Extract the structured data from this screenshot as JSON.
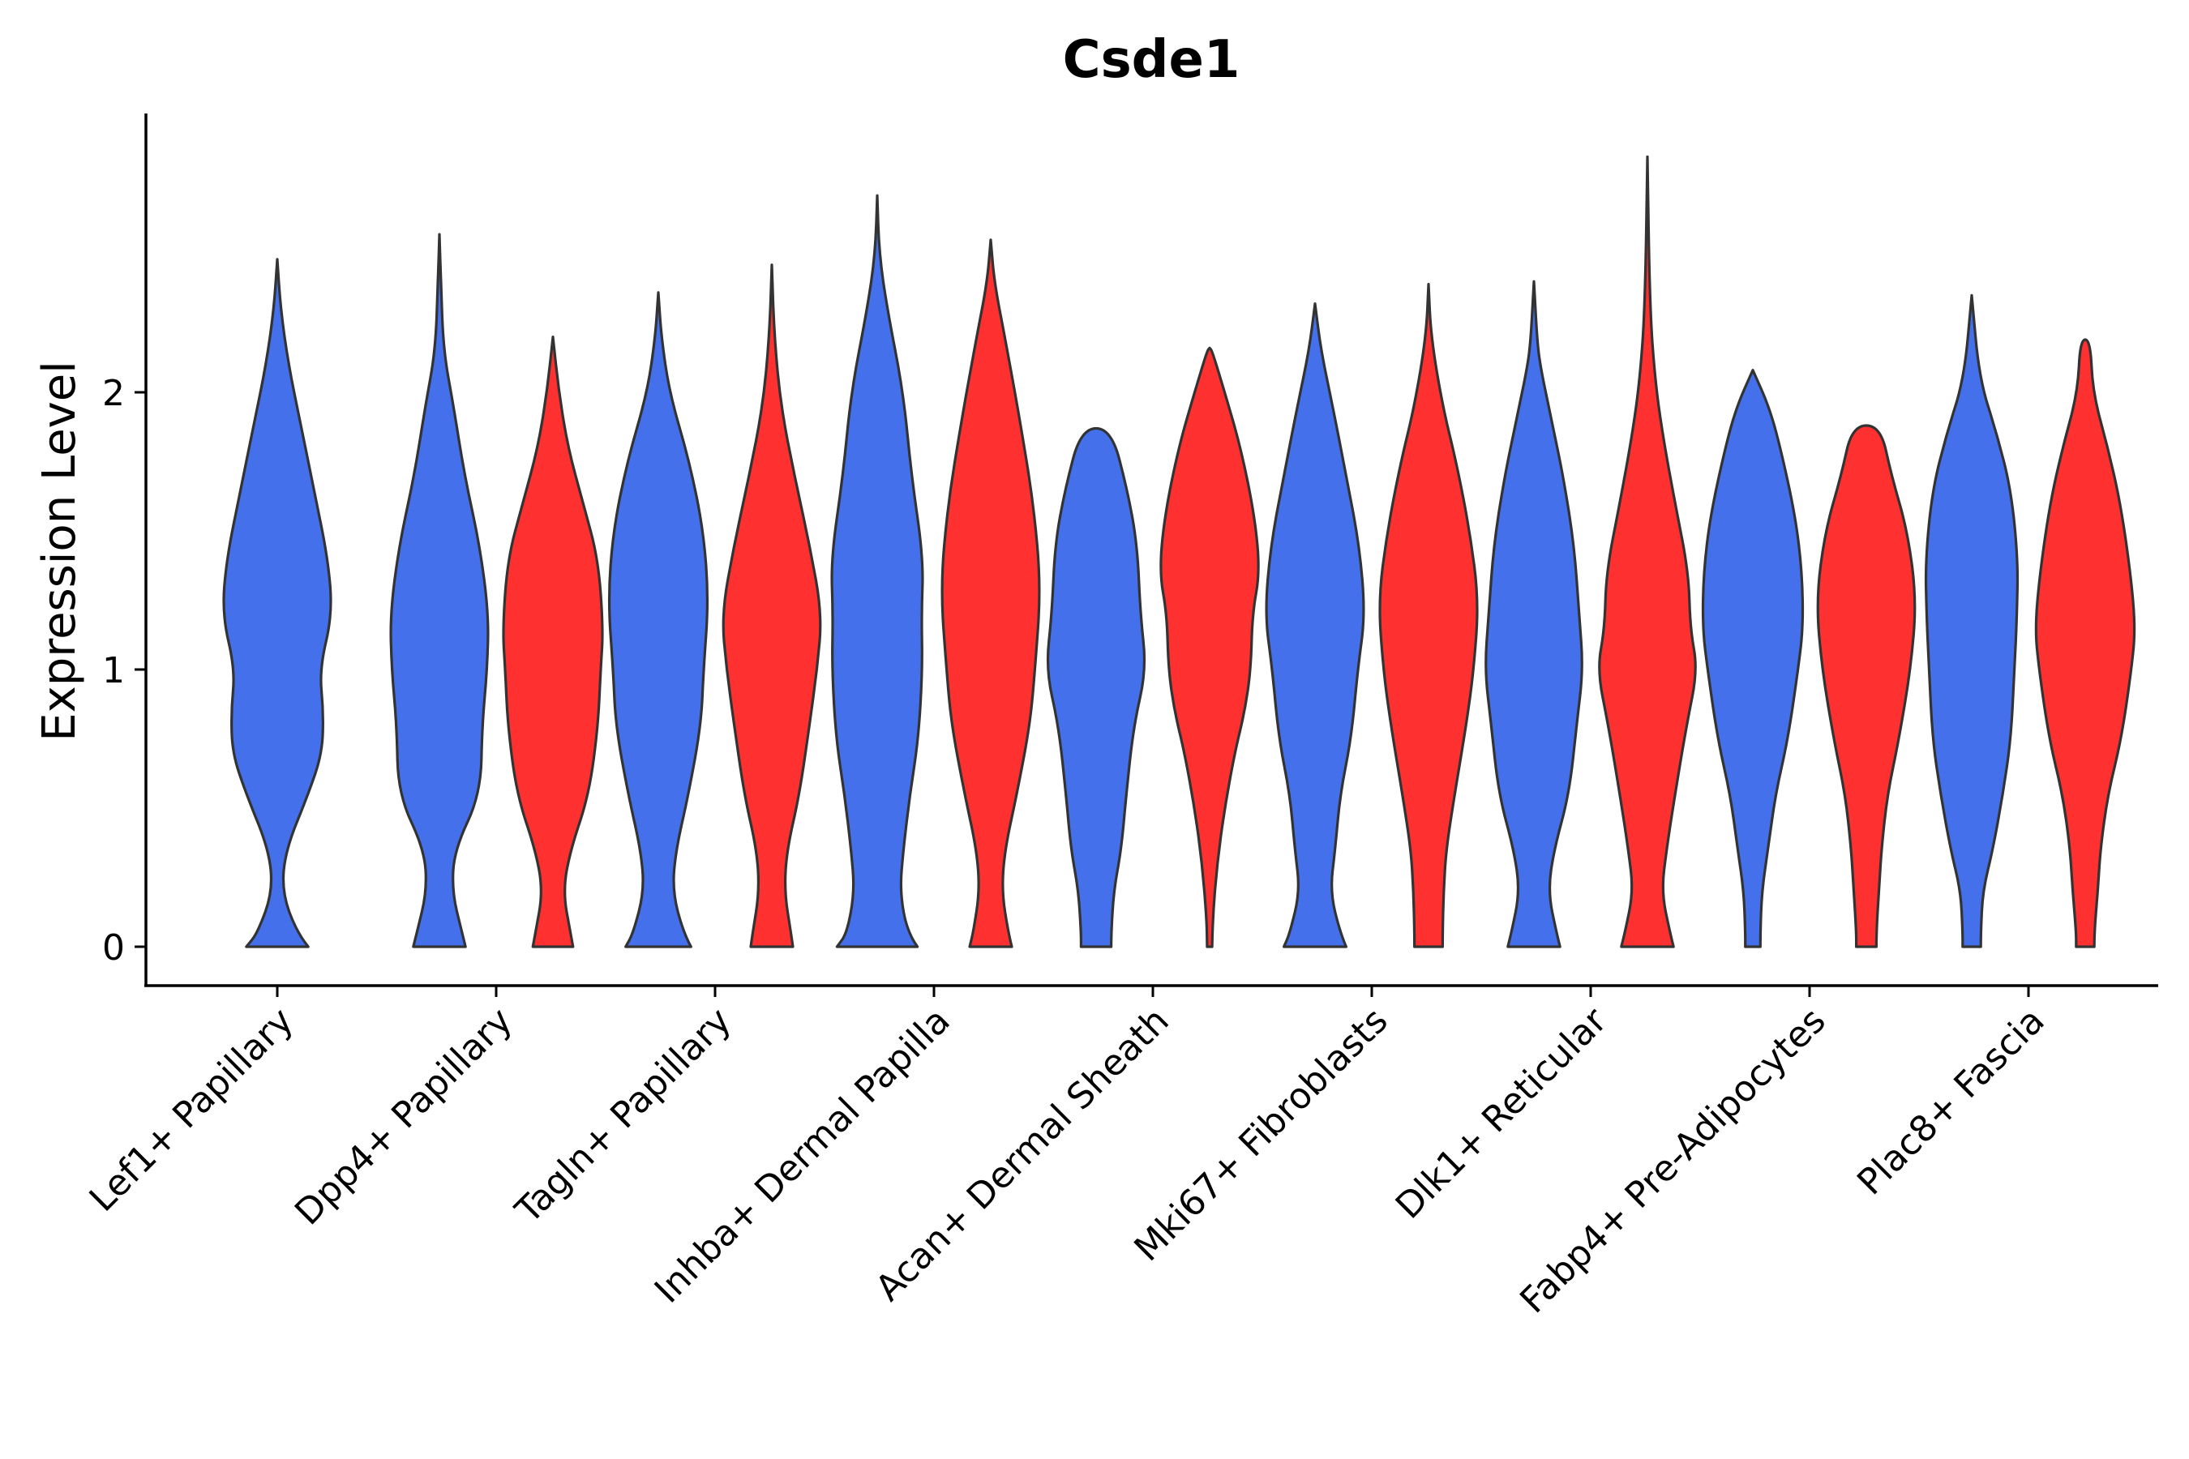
{
  "chart_data": {
    "type": "violin",
    "title": "Csde1",
    "xlabel": "",
    "ylabel": "Expression Level",
    "ylim": [
      -0.15,
      3.0
    ],
    "yticks": [
      0,
      1,
      2
    ],
    "grid": false,
    "legend": "none",
    "series_colors": {
      "blue": "#4470EB",
      "red": "#FF3030"
    },
    "categories": [
      "Lef1+ Papillary",
      "Dpp4+ Papillary",
      "Tagln+ Papillary",
      "Inhba+ Dermal Papilla",
      "Acan+ Dermal Sheath",
      "Mki67+ Fibroblasts",
      "Dlk1+ Reticular",
      "Fabp4+ Pre-Adipocytes",
      "Plac8+ Fascia"
    ],
    "violins": [
      {
        "category": 0,
        "group": "blue",
        "profile": [
          [
            0,
            0.55
          ],
          [
            0.05,
            0.35
          ],
          [
            0.2,
            0.08
          ],
          [
            0.35,
            0.15
          ],
          [
            0.55,
            0.55
          ],
          [
            0.7,
            0.8
          ],
          [
            0.85,
            0.82
          ],
          [
            1.0,
            0.75
          ],
          [
            1.2,
            0.98
          ],
          [
            1.4,
            0.9
          ],
          [
            1.65,
            0.65
          ],
          [
            1.9,
            0.4
          ],
          [
            2.1,
            0.2
          ],
          [
            2.3,
            0.06
          ],
          [
            2.48,
            0.0
          ]
        ]
      },
      {
        "category": 1,
        "group": "blue",
        "profile": [
          [
            0,
            0.52
          ],
          [
            0.05,
            0.45
          ],
          [
            0.2,
            0.25
          ],
          [
            0.35,
            0.3
          ],
          [
            0.55,
            0.82
          ],
          [
            0.8,
            0.85
          ],
          [
            1.0,
            0.95
          ],
          [
            1.2,
            0.98
          ],
          [
            1.45,
            0.8
          ],
          [
            1.7,
            0.5
          ],
          [
            1.95,
            0.28
          ],
          [
            2.15,
            0.08
          ],
          [
            2.4,
            0.03
          ],
          [
            2.57,
            0.0
          ]
        ]
      },
      {
        "category": 1,
        "group": "red",
        "profile": [
          [
            0,
            0.4
          ],
          [
            0.05,
            0.35
          ],
          [
            0.2,
            0.2
          ],
          [
            0.35,
            0.35
          ],
          [
            0.55,
            0.72
          ],
          [
            0.8,
            0.9
          ],
          [
            1.0,
            0.95
          ],
          [
            1.15,
            1.0
          ],
          [
            1.4,
            0.9
          ],
          [
            1.6,
            0.6
          ],
          [
            1.8,
            0.3
          ],
          [
            2.0,
            0.12
          ],
          [
            2.2,
            0.0
          ]
        ]
      },
      {
        "category": 2,
        "group": "blue",
        "profile": [
          [
            0,
            0.65
          ],
          [
            0.05,
            0.5
          ],
          [
            0.2,
            0.28
          ],
          [
            0.35,
            0.35
          ],
          [
            0.55,
            0.6
          ],
          [
            0.8,
            0.85
          ],
          [
            1.0,
            0.9
          ],
          [
            1.25,
            1.0
          ],
          [
            1.5,
            0.9
          ],
          [
            1.75,
            0.62
          ],
          [
            2.0,
            0.22
          ],
          [
            2.2,
            0.06
          ],
          [
            2.36,
            0.0
          ]
        ]
      },
      {
        "category": 2,
        "group": "red",
        "profile": [
          [
            0,
            0.42
          ],
          [
            0.05,
            0.38
          ],
          [
            0.2,
            0.25
          ],
          [
            0.35,
            0.3
          ],
          [
            0.55,
            0.55
          ],
          [
            0.8,
            0.75
          ],
          [
            1.0,
            0.9
          ],
          [
            1.2,
            1.0
          ],
          [
            1.45,
            0.75
          ],
          [
            1.7,
            0.45
          ],
          [
            1.95,
            0.18
          ],
          [
            2.2,
            0.05
          ],
          [
            2.46,
            0.0
          ]
        ]
      },
      {
        "category": 3,
        "group": "blue",
        "profile": [
          [
            0,
            0.8
          ],
          [
            0.05,
            0.6
          ],
          [
            0.2,
            0.45
          ],
          [
            0.35,
            0.52
          ],
          [
            0.55,
            0.65
          ],
          [
            0.75,
            0.82
          ],
          [
            1.0,
            0.9
          ],
          [
            1.2,
            0.88
          ],
          [
            1.4,
            0.92
          ],
          [
            1.7,
            0.68
          ],
          [
            2.0,
            0.52
          ],
          [
            2.3,
            0.2
          ],
          [
            2.5,
            0.04
          ],
          [
            2.71,
            0.0
          ]
        ]
      },
      {
        "category": 3,
        "group": "red",
        "profile": [
          [
            0,
            0.42
          ],
          [
            0.05,
            0.35
          ],
          [
            0.2,
            0.22
          ],
          [
            0.35,
            0.28
          ],
          [
            0.55,
            0.52
          ],
          [
            0.8,
            0.78
          ],
          [
            1.0,
            0.88
          ],
          [
            1.3,
            1.0
          ],
          [
            1.6,
            0.85
          ],
          [
            1.9,
            0.58
          ],
          [
            2.2,
            0.28
          ],
          [
            2.4,
            0.07
          ],
          [
            2.55,
            0.0
          ]
        ]
      },
      {
        "category": 4,
        "group": "blue",
        "profile": [
          [
            0,
            0.3
          ],
          [
            0.05,
            0.3
          ],
          [
            0.2,
            0.35
          ],
          [
            0.35,
            0.5
          ],
          [
            0.55,
            0.6
          ],
          [
            0.8,
            0.75
          ],
          [
            1.0,
            1.0
          ],
          [
            1.2,
            0.88
          ],
          [
            1.45,
            0.82
          ],
          [
            1.65,
            0.62
          ],
          [
            1.87,
            0.3
          ]
        ]
      },
      {
        "category": 4,
        "group": "red",
        "profile": [
          [
            0,
            0.05
          ],
          [
            0.1,
            0.06
          ],
          [
            0.3,
            0.15
          ],
          [
            0.5,
            0.3
          ],
          [
            0.7,
            0.5
          ],
          [
            0.85,
            0.7
          ],
          [
            1.0,
            0.82
          ],
          [
            1.2,
            0.85
          ],
          [
            1.35,
            1.0
          ],
          [
            1.55,
            0.9
          ],
          [
            1.8,
            0.62
          ],
          [
            2.0,
            0.3
          ],
          [
            2.15,
            0.05
          ],
          [
            2.16,
            0.0
          ]
        ]
      },
      {
        "category": 5,
        "group": "blue",
        "profile": [
          [
            0,
            0.62
          ],
          [
            0.05,
            0.5
          ],
          [
            0.2,
            0.3
          ],
          [
            0.35,
            0.4
          ],
          [
            0.55,
            0.5
          ],
          [
            0.75,
            0.72
          ],
          [
            1.0,
            0.85
          ],
          [
            1.2,
            1.0
          ],
          [
            1.45,
            0.88
          ],
          [
            1.7,
            0.62
          ],
          [
            1.95,
            0.35
          ],
          [
            2.15,
            0.12
          ],
          [
            2.32,
            0.0
          ]
        ]
      },
      {
        "category": 5,
        "group": "red",
        "profile": [
          [
            0,
            0.28
          ],
          [
            0.05,
            0.28
          ],
          [
            0.2,
            0.3
          ],
          [
            0.35,
            0.35
          ],
          [
            0.55,
            0.52
          ],
          [
            0.8,
            0.75
          ],
          [
            1.0,
            0.9
          ],
          [
            1.25,
            1.0
          ],
          [
            1.5,
            0.82
          ],
          [
            1.75,
            0.55
          ],
          [
            1.95,
            0.28
          ],
          [
            2.2,
            0.05
          ],
          [
            2.39,
            0.0
          ]
        ]
      },
      {
        "category": 6,
        "group": "blue",
        "profile": [
          [
            0,
            0.52
          ],
          [
            0.05,
            0.45
          ],
          [
            0.2,
            0.28
          ],
          [
            0.35,
            0.4
          ],
          [
            0.55,
            0.7
          ],
          [
            0.8,
            0.85
          ],
          [
            1.0,
            0.98
          ],
          [
            1.2,
            0.9
          ],
          [
            1.45,
            0.8
          ],
          [
            1.7,
            0.58
          ],
          [
            1.9,
            0.35
          ],
          [
            2.1,
            0.12
          ],
          [
            2.2,
            0.06
          ],
          [
            2.4,
            0.0
          ]
        ]
      },
      {
        "category": 6,
        "group": "red",
        "profile": [
          [
            0,
            0.52
          ],
          [
            0.05,
            0.45
          ],
          [
            0.2,
            0.28
          ],
          [
            0.35,
            0.38
          ],
          [
            0.55,
            0.55
          ],
          [
            0.8,
            0.78
          ],
          [
            1.0,
            1.0
          ],
          [
            1.15,
            0.85
          ],
          [
            1.35,
            0.82
          ],
          [
            1.6,
            0.55
          ],
          [
            1.85,
            0.3
          ],
          [
            2.05,
            0.15
          ],
          [
            2.3,
            0.05
          ],
          [
            2.85,
            0.0
          ]
        ]
      },
      {
        "category": 7,
        "group": "blue",
        "profile": [
          [
            0,
            0.15
          ],
          [
            0.05,
            0.15
          ],
          [
            0.2,
            0.18
          ],
          [
            0.35,
            0.3
          ],
          [
            0.55,
            0.45
          ],
          [
            0.75,
            0.7
          ],
          [
            1.0,
            0.9
          ],
          [
            1.15,
            1.0
          ],
          [
            1.35,
            0.98
          ],
          [
            1.55,
            0.85
          ],
          [
            1.8,
            0.55
          ],
          [
            1.95,
            0.32
          ],
          [
            2.08,
            0.0
          ]
        ]
      },
      {
        "category": 7,
        "group": "red",
        "profile": [
          [
            0,
            0.2
          ],
          [
            0.05,
            0.2
          ],
          [
            0.2,
            0.25
          ],
          [
            0.35,
            0.3
          ],
          [
            0.55,
            0.42
          ],
          [
            0.75,
            0.65
          ],
          [
            1.0,
            0.88
          ],
          [
            1.25,
            1.0
          ],
          [
            1.5,
            0.82
          ],
          [
            1.7,
            0.5
          ],
          [
            1.88,
            0.28
          ]
        ]
      },
      {
        "category": 8,
        "group": "blue",
        "profile": [
          [
            0,
            0.18
          ],
          [
            0.05,
            0.18
          ],
          [
            0.2,
            0.22
          ],
          [
            0.35,
            0.42
          ],
          [
            0.55,
            0.62
          ],
          [
            0.75,
            0.78
          ],
          [
            1.0,
            0.85
          ],
          [
            1.2,
            0.9
          ],
          [
            1.4,
            0.92
          ],
          [
            1.65,
            0.78
          ],
          [
            1.85,
            0.5
          ],
          [
            2.05,
            0.15
          ],
          [
            2.35,
            0.0
          ]
        ]
      },
      {
        "category": 8,
        "group": "red",
        "profile": [
          [
            0,
            0.18
          ],
          [
            0.05,
            0.18
          ],
          [
            0.2,
            0.25
          ],
          [
            0.35,
            0.3
          ],
          [
            0.55,
            0.45
          ],
          [
            0.75,
            0.72
          ],
          [
            1.0,
            0.92
          ],
          [
            1.15,
            1.0
          ],
          [
            1.35,
            0.9
          ],
          [
            1.6,
            0.7
          ],
          [
            1.8,
            0.45
          ],
          [
            2.0,
            0.15
          ],
          [
            2.19,
            0.1
          ]
        ]
      }
    ]
  }
}
